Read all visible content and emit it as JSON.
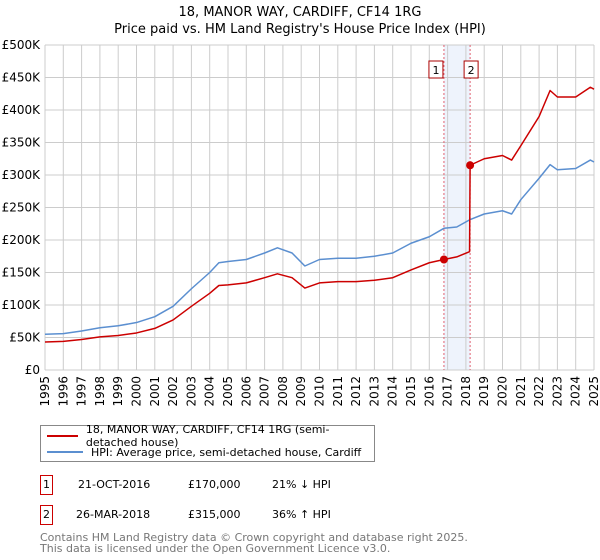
{
  "chart_data": {
    "type": "line",
    "title": "18, MANOR WAY, CARDIFF, CF14 1RG",
    "subtitle": "Price paid vs. HM Land Registry's House Price Index (HPI)",
    "xlim": [
      1995,
      2025
    ],
    "ylim": [
      0,
      500000
    ],
    "x_ticks": [
      "1995",
      "1996",
      "1997",
      "1998",
      "1999",
      "2000",
      "2001",
      "2002",
      "2003",
      "2004",
      "2005",
      "2006",
      "2007",
      "2008",
      "2009",
      "2010",
      "2011",
      "2012",
      "2013",
      "2014",
      "2015",
      "2016",
      "2017",
      "2018",
      "2019",
      "2020",
      "2021",
      "2022",
      "2023",
      "2024",
      "2025"
    ],
    "y_ticks": [
      "£0",
      "£50K",
      "£100K",
      "£150K",
      "£200K",
      "£250K",
      "£300K",
      "£350K",
      "£400K",
      "£450K",
      "£500K"
    ],
    "grid": true,
    "series": [
      {
        "name": "18, MANOR WAY, CARDIFF, CF14 1RG (semi-detached house)",
        "color": "#cc0000",
        "x": [
          1995,
          1996,
          1997,
          1998,
          1999,
          2000,
          2001,
          2002,
          2003,
          2004,
          2004.5,
          2005,
          2006,
          2007,
          2007.7,
          2008.5,
          2009.2,
          2010,
          2011,
          2012,
          2013,
          2014,
          2015,
          2016,
          2016.8,
          2017.5,
          2018.2,
          2018.23,
          2019,
          2020,
          2020.5,
          2021,
          2022,
          2022.6,
          2023,
          2024,
          2024.8,
          2025
        ],
        "y": [
          43000,
          44000,
          47000,
          51000,
          53000,
          57000,
          64000,
          77000,
          98000,
          118000,
          130000,
          131000,
          134000,
          142000,
          148000,
          142000,
          126000,
          134000,
          136000,
          136000,
          138000,
          142000,
          154000,
          165000,
          170000,
          174000,
          182000,
          315000,
          325000,
          330000,
          323000,
          345000,
          390000,
          430000,
          420000,
          420000,
          435000,
          432000
        ]
      },
      {
        "name": "HPI: Average price, semi-detached house, Cardiff",
        "color": "#5b8fd0",
        "x": [
          1995,
          1996,
          1997,
          1998,
          1999,
          2000,
          2001,
          2002,
          2003,
          2004,
          2004.5,
          2005,
          2006,
          2007,
          2007.7,
          2008.5,
          2009.2,
          2010,
          2011,
          2012,
          2013,
          2014,
          2015,
          2016,
          2016.8,
          2017.5,
          2018.2,
          2019,
          2020,
          2020.5,
          2021,
          2022,
          2022.6,
          2023,
          2024,
          2024.8,
          2025
        ],
        "y": [
          55000,
          56000,
          60000,
          65000,
          68000,
          73000,
          82000,
          98000,
          125000,
          150000,
          165000,
          167000,
          170000,
          180000,
          188000,
          180000,
          160000,
          170000,
          172000,
          172000,
          175000,
          180000,
          195000,
          205000,
          218000,
          220000,
          231000,
          240000,
          245000,
          240000,
          262000,
          295000,
          316000,
          308000,
          310000,
          323000,
          320000
        ]
      }
    ],
    "sales": [
      {
        "label": "1",
        "year": 2016.8,
        "price": 170000,
        "date": "21-OCT-2016",
        "price_text": "£170,000",
        "hpi_text": "21% ↓ HPI"
      },
      {
        "label": "2",
        "year": 2018.23,
        "price": 315000,
        "date": "26-MAR-2018",
        "price_text": "£315,000",
        "hpi_text": "36% ↑ HPI"
      }
    ]
  },
  "footer": [
    "Contains HM Land Registry data © Crown copyright and database right 2025.",
    "This data is licensed under the Open Government Licence v3.0."
  ]
}
